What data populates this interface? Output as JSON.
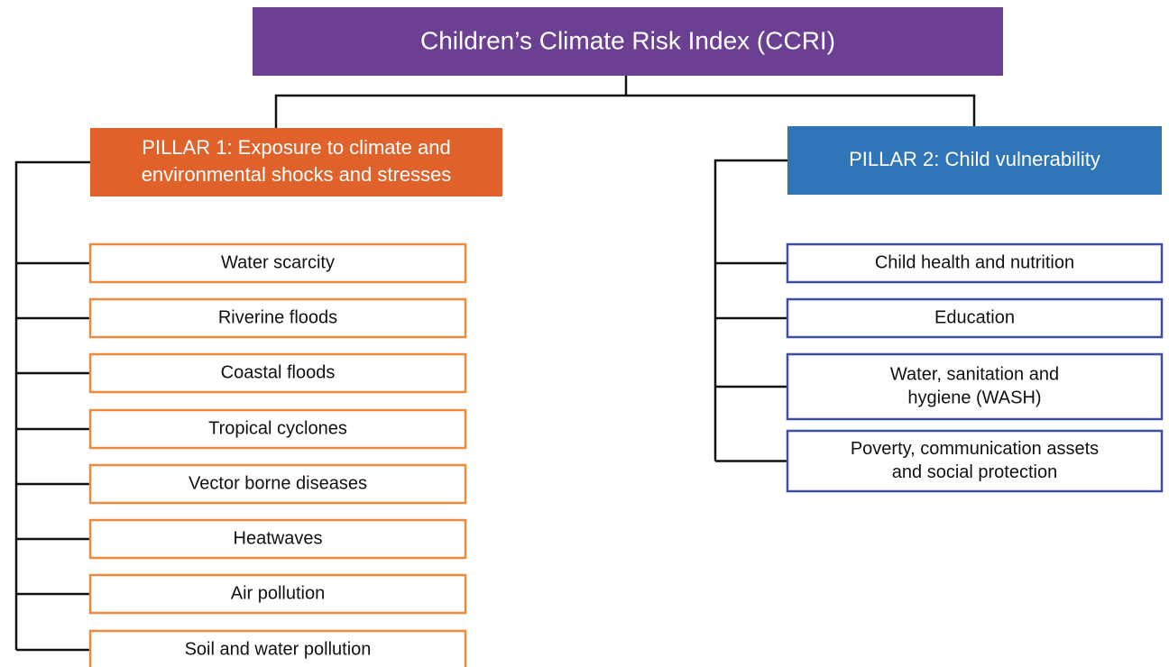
{
  "title": "Children’s Climate Risk Index (CCRI)",
  "pillars": [
    {
      "label": [
        "PILLAR 1: Exposure to climate and",
        "environmental shocks and stresses"
      ],
      "items": [
        [
          "Water scarcity"
        ],
        [
          "Riverine floods"
        ],
        [
          "Coastal floods"
        ],
        [
          "Tropical cyclones"
        ],
        [
          "Vector borne diseases"
        ],
        [
          "Heatwaves"
        ],
        [
          "Air pollution"
        ],
        [
          "Soil and water pollution"
        ]
      ]
    },
    {
      "label": [
        "PILLAR 2: Child vulnerability"
      ],
      "items": [
        [
          "Child health and nutrition"
        ],
        [
          "Education"
        ],
        [
          "Water, sanitation and",
          "hygiene (WASH)"
        ],
        [
          "Poverty, communication assets",
          "and social protection"
        ]
      ]
    }
  ]
}
